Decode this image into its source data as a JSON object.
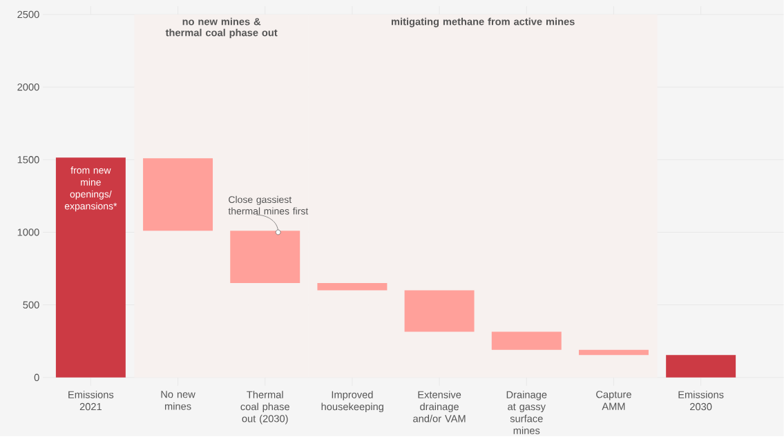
{
  "chart_data": {
    "type": "bar",
    "categories": [
      "Emissions 2021",
      "No new mines",
      "Thermal coal phase out (2030)",
      "Improved housekeeping",
      "Extensive drainage and/or VAM",
      "Drainage at gassy surface mines",
      "Capture AMM",
      "Emissions 2030"
    ],
    "base": [
      0,
      1510,
      1010,
      650,
      600,
      315,
      190,
      0
    ],
    "values": [
      1515,
      -500,
      -360,
      -50,
      -285,
      -125,
      -35,
      155
    ],
    "colors": [
      "#cc3a44",
      "#ffa09a",
      "#ffa09a",
      "#ffa09a",
      "#ffa09a",
      "#ffa09a",
      "#ffa09a",
      "#cc3a44"
    ],
    "ylim": [
      0,
      2500
    ],
    "yticks": [
      0,
      500,
      1000,
      1500,
      2000,
      2500
    ],
    "grid": "y",
    "bands": [
      {
        "axis": "x",
        "from": "No new mines",
        "to": "Thermal coal phase out (2030)",
        "label": "no new mines & thermal coal phase out",
        "color": "#f7f1ef"
      },
      {
        "axis": "x",
        "from": "Improved housekeeping",
        "to": "Capture AMM",
        "label": "mitigating methane from active mines",
        "color": "#f7f1ef"
      }
    ],
    "annotations": [
      "from new mine openings/ expansions*",
      {
        "text": "Close gassiest thermal mines first",
        "x": "Thermal coal phase out (2030)",
        "y": 1000
      }
    ]
  }
}
